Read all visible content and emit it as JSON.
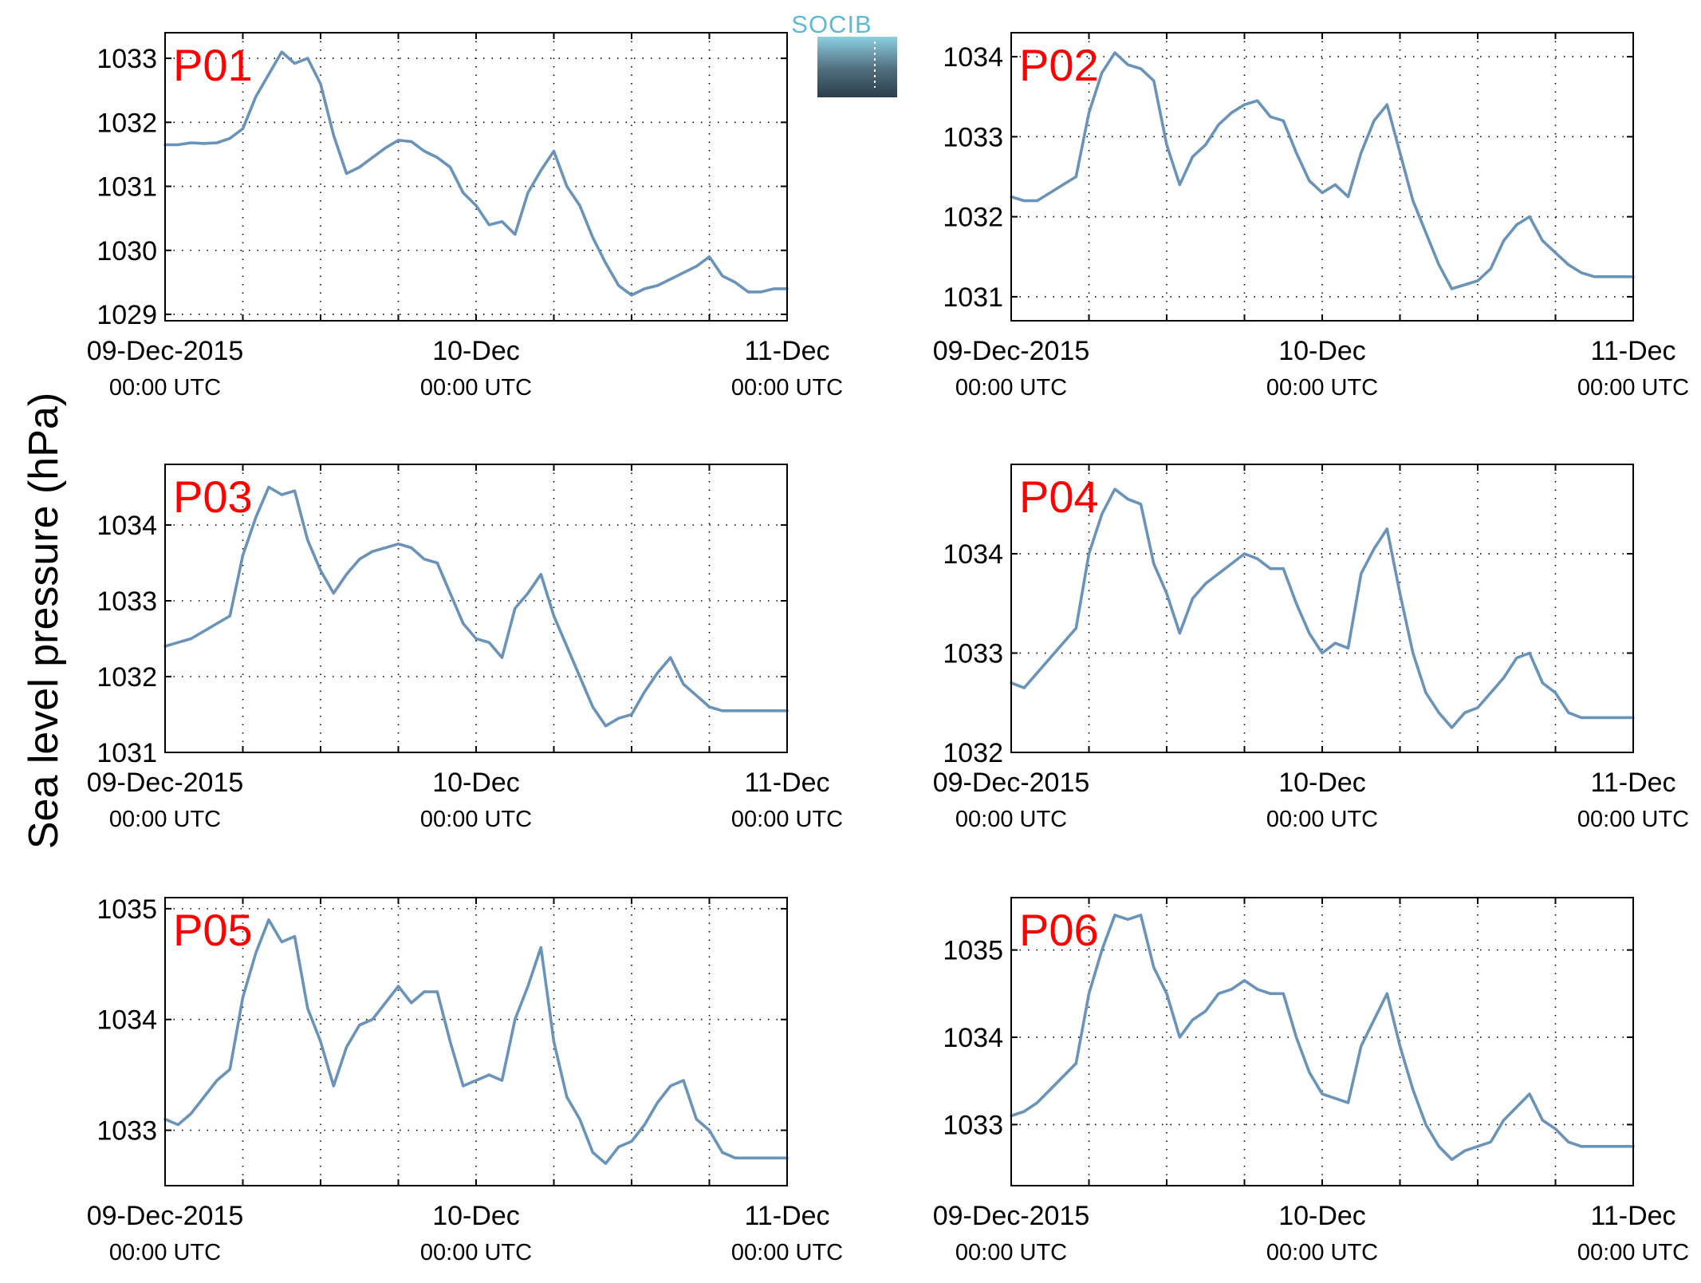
{
  "figure": {
    "ylabel": "Sea level pressure (hPa)",
    "logo_text": "SOCIB",
    "line_color": "#6a93b9",
    "label_color": "#ff0000"
  },
  "chart_data": [
    {
      "type": "line",
      "label": "P01",
      "ylim": [
        1028.9,
        1033.4
      ],
      "yticks": [
        1029,
        1030,
        1031,
        1032,
        1033
      ],
      "xlim": [
        0,
        48
      ],
      "xticks": [
        0,
        24,
        48
      ],
      "xticklabels": [
        {
          "date": "09-Dec-2015",
          "time": "00:00 UTC"
        },
        {
          "date": "10-Dec",
          "time": "00:00 UTC"
        },
        {
          "date": "11-Dec",
          "time": "00:00 UTC"
        }
      ],
      "grid": true,
      "x": [
        0,
        1,
        2,
        3,
        4,
        5,
        6,
        7,
        8,
        9,
        10,
        11,
        12,
        13,
        14,
        15,
        16,
        17,
        18,
        19,
        20,
        21,
        22,
        23,
        24,
        25,
        26,
        27,
        28,
        29,
        30,
        31,
        32,
        33,
        34,
        35,
        36,
        37,
        38,
        39,
        40,
        41,
        42,
        43,
        44,
        45,
        46,
        47,
        48
      ],
      "y": [
        1031.65,
        1031.65,
        1031.68,
        1031.67,
        1031.68,
        1031.75,
        1031.9,
        1032.4,
        1032.75,
        1033.1,
        1032.92,
        1033.0,
        1032.6,
        1031.8,
        1031.2,
        1031.3,
        1031.45,
        1031.6,
        1031.72,
        1031.7,
        1031.55,
        1031.45,
        1031.3,
        1030.9,
        1030.7,
        1030.4,
        1030.45,
        1030.25,
        1030.9,
        1031.25,
        1031.55,
        1031.0,
        1030.7,
        1030.2,
        1029.8,
        1029.45,
        1029.3,
        1029.4,
        1029.45,
        1029.55,
        1029.65,
        1029.75,
        1029.9,
        1029.6,
        1029.5,
        1029.35,
        1029.35,
        1029.4,
        1029.4
      ]
    },
    {
      "type": "line",
      "label": "P02",
      "ylim": [
        1030.7,
        1034.3
      ],
      "yticks": [
        1031,
        1032,
        1033,
        1034
      ],
      "xlim": [
        0,
        48
      ],
      "xticks": [
        0,
        24,
        48
      ],
      "xticklabels": [
        {
          "date": "09-Dec-2015",
          "time": "00:00 UTC"
        },
        {
          "date": "10-Dec",
          "time": "00:00 UTC"
        },
        {
          "date": "11-Dec",
          "time": "00:00 UTC"
        }
      ],
      "grid": true,
      "x": [
        0,
        1,
        2,
        3,
        4,
        5,
        6,
        7,
        8,
        9,
        10,
        11,
        12,
        13,
        14,
        15,
        16,
        17,
        18,
        19,
        20,
        21,
        22,
        23,
        24,
        25,
        26,
        27,
        28,
        29,
        30,
        31,
        32,
        33,
        34,
        35,
        36,
        37,
        38,
        39,
        40,
        41,
        42,
        43,
        44,
        45,
        46,
        47,
        48
      ],
      "y": [
        1032.25,
        1032.2,
        1032.2,
        1032.3,
        1032.4,
        1032.5,
        1033.3,
        1033.8,
        1034.05,
        1033.9,
        1033.85,
        1033.7,
        1032.9,
        1032.4,
        1032.75,
        1032.9,
        1033.15,
        1033.3,
        1033.4,
        1033.45,
        1033.25,
        1033.2,
        1032.8,
        1032.45,
        1032.3,
        1032.4,
        1032.25,
        1032.8,
        1033.2,
        1033.4,
        1032.8,
        1032.2,
        1031.8,
        1031.4,
        1031.1,
        1031.15,
        1031.2,
        1031.35,
        1031.7,
        1031.9,
        1032.0,
        1031.7,
        1031.55,
        1031.4,
        1031.3,
        1031.25,
        1031.25,
        1031.25,
        1031.25
      ]
    },
    {
      "type": "line",
      "label": "P03",
      "ylim": [
        1031.0,
        1034.8
      ],
      "yticks": [
        1031,
        1032,
        1033,
        1034
      ],
      "xlim": [
        0,
        48
      ],
      "xticks": [
        0,
        24,
        48
      ],
      "xticklabels": [
        {
          "date": "09-Dec-2015",
          "time": "00:00 UTC"
        },
        {
          "date": "10-Dec",
          "time": "00:00 UTC"
        },
        {
          "date": "11-Dec",
          "time": "00:00 UTC"
        }
      ],
      "grid": true,
      "x": [
        0,
        1,
        2,
        3,
        4,
        5,
        6,
        7,
        8,
        9,
        10,
        11,
        12,
        13,
        14,
        15,
        16,
        17,
        18,
        19,
        20,
        21,
        22,
        23,
        24,
        25,
        26,
        27,
        28,
        29,
        30,
        31,
        32,
        33,
        34,
        35,
        36,
        37,
        38,
        39,
        40,
        41,
        42,
        43,
        44,
        45,
        46,
        47,
        48
      ],
      "y": [
        1032.4,
        1032.45,
        1032.5,
        1032.6,
        1032.7,
        1032.8,
        1033.6,
        1034.1,
        1034.5,
        1034.4,
        1034.45,
        1033.8,
        1033.4,
        1033.1,
        1033.35,
        1033.55,
        1033.65,
        1033.7,
        1033.75,
        1033.7,
        1033.55,
        1033.5,
        1033.1,
        1032.7,
        1032.5,
        1032.45,
        1032.25,
        1032.9,
        1033.1,
        1033.35,
        1032.8,
        1032.4,
        1032.0,
        1031.6,
        1031.35,
        1031.45,
        1031.5,
        1031.8,
        1032.05,
        1032.25,
        1031.9,
        1031.75,
        1031.6,
        1031.55,
        1031.55,
        1031.55,
        1031.55,
        1031.55,
        1031.55
      ]
    },
    {
      "type": "line",
      "label": "P04",
      "ylim": [
        1032.0,
        1034.9
      ],
      "yticks": [
        1032,
        1033,
        1034
      ],
      "xlim": [
        0,
        48
      ],
      "xticks": [
        0,
        24,
        48
      ],
      "xticklabels": [
        {
          "date": "09-Dec-2015",
          "time": "00:00 UTC"
        },
        {
          "date": "10-Dec",
          "time": "00:00 UTC"
        },
        {
          "date": "11-Dec",
          "time": "00:00 UTC"
        }
      ],
      "grid": true,
      "x": [
        0,
        1,
        2,
        3,
        4,
        5,
        6,
        7,
        8,
        9,
        10,
        11,
        12,
        13,
        14,
        15,
        16,
        17,
        18,
        19,
        20,
        21,
        22,
        23,
        24,
        25,
        26,
        27,
        28,
        29,
        30,
        31,
        32,
        33,
        34,
        35,
        36,
        37,
        38,
        39,
        40,
        41,
        42,
        43,
        44,
        45,
        46,
        47,
        48
      ],
      "y": [
        1032.7,
        1032.65,
        1032.8,
        1032.95,
        1033.1,
        1033.25,
        1034.0,
        1034.4,
        1034.65,
        1034.55,
        1034.5,
        1033.9,
        1033.6,
        1033.2,
        1033.55,
        1033.7,
        1033.8,
        1033.9,
        1034.0,
        1033.95,
        1033.85,
        1033.85,
        1033.5,
        1033.2,
        1033.0,
        1033.1,
        1033.05,
        1033.8,
        1034.05,
        1034.25,
        1033.6,
        1033.0,
        1032.6,
        1032.4,
        1032.25,
        1032.4,
        1032.45,
        1032.6,
        1032.75,
        1032.95,
        1033.0,
        1032.7,
        1032.6,
        1032.4,
        1032.35,
        1032.35,
        1032.35,
        1032.35,
        1032.35
      ]
    },
    {
      "type": "line",
      "label": "P05",
      "ylim": [
        1032.5,
        1035.1
      ],
      "yticks": [
        1033,
        1034,
        1035
      ],
      "xlim": [
        0,
        48
      ],
      "xticks": [
        0,
        24,
        48
      ],
      "xticklabels": [
        {
          "date": "09-Dec-2015",
          "time": "00:00 UTC"
        },
        {
          "date": "10-Dec",
          "time": "00:00 UTC"
        },
        {
          "date": "11-Dec",
          "time": "00:00 UTC"
        }
      ],
      "grid": true,
      "x": [
        0,
        1,
        2,
        3,
        4,
        5,
        6,
        7,
        8,
        9,
        10,
        11,
        12,
        13,
        14,
        15,
        16,
        17,
        18,
        19,
        20,
        21,
        22,
        23,
        24,
        25,
        26,
        27,
        28,
        29,
        30,
        31,
        32,
        33,
        34,
        35,
        36,
        37,
        38,
        39,
        40,
        41,
        42,
        43,
        44,
        45,
        46,
        47,
        48
      ],
      "y": [
        1033.1,
        1033.05,
        1033.15,
        1033.3,
        1033.45,
        1033.55,
        1034.2,
        1034.6,
        1034.9,
        1034.7,
        1034.75,
        1034.1,
        1033.8,
        1033.4,
        1033.75,
        1033.95,
        1034.0,
        1034.15,
        1034.3,
        1034.15,
        1034.25,
        1034.25,
        1033.8,
        1033.4,
        1033.45,
        1033.5,
        1033.45,
        1034.0,
        1034.3,
        1034.65,
        1033.8,
        1033.3,
        1033.1,
        1032.8,
        1032.7,
        1032.85,
        1032.9,
        1033.05,
        1033.25,
        1033.4,
        1033.45,
        1033.1,
        1033.0,
        1032.8,
        1032.75,
        1032.75,
        1032.75,
        1032.75,
        1032.75
      ]
    },
    {
      "type": "line",
      "label": "P06",
      "ylim": [
        1032.3,
        1035.6
      ],
      "yticks": [
        1033,
        1034,
        1035
      ],
      "xlim": [
        0,
        48
      ],
      "xticks": [
        0,
        24,
        48
      ],
      "xticklabels": [
        {
          "date": "09-Dec-2015",
          "time": "00:00 UTC"
        },
        {
          "date": "10-Dec",
          "time": "00:00 UTC"
        },
        {
          "date": "11-Dec",
          "time": "00:00 UTC"
        }
      ],
      "grid": true,
      "x": [
        0,
        1,
        2,
        3,
        4,
        5,
        6,
        7,
        8,
        9,
        10,
        11,
        12,
        13,
        14,
        15,
        16,
        17,
        18,
        19,
        20,
        21,
        22,
        23,
        24,
        25,
        26,
        27,
        28,
        29,
        30,
        31,
        32,
        33,
        34,
        35,
        36,
        37,
        38,
        39,
        40,
        41,
        42,
        43,
        44,
        45,
        46,
        47,
        48
      ],
      "y": [
        1033.1,
        1033.15,
        1033.25,
        1033.4,
        1033.55,
        1033.7,
        1034.5,
        1035.0,
        1035.4,
        1035.35,
        1035.4,
        1034.8,
        1034.5,
        1034.0,
        1034.2,
        1034.3,
        1034.5,
        1034.55,
        1034.65,
        1034.55,
        1034.5,
        1034.5,
        1034.0,
        1033.6,
        1033.35,
        1033.3,
        1033.25,
        1033.9,
        1034.2,
        1034.5,
        1033.9,
        1033.4,
        1033.0,
        1032.75,
        1032.6,
        1032.7,
        1032.75,
        1032.8,
        1033.05,
        1033.2,
        1033.35,
        1033.05,
        1032.95,
        1032.8,
        1032.75,
        1032.75,
        1032.75,
        1032.75,
        1032.75
      ]
    }
  ]
}
